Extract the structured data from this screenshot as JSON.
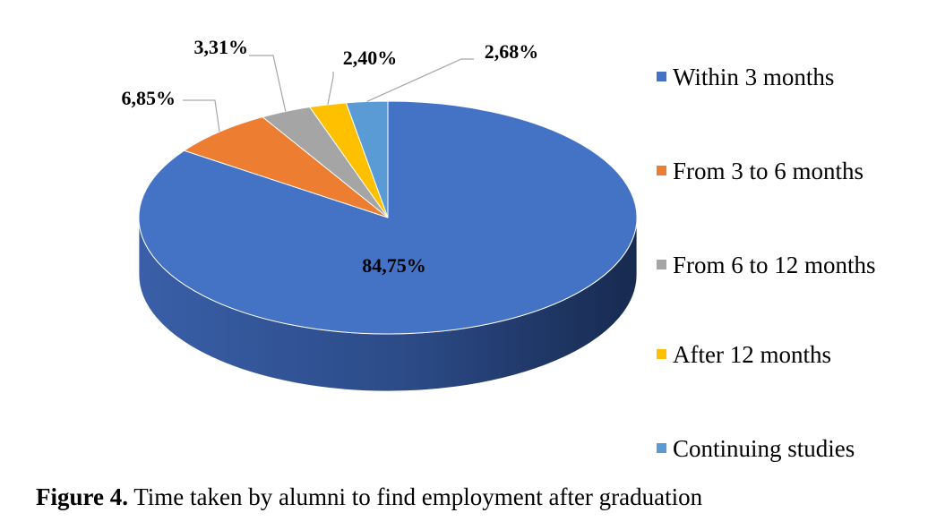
{
  "caption": {
    "label": "Figure 4.",
    "text": " Time taken by alumni to find employment after graduation"
  },
  "chart_data": {
    "type": "pie",
    "three_d": true,
    "legend_position": "right",
    "categories": [
      "Within 3 months",
      "From 3 to 6 months",
      "From 6 to 12 months",
      "After 12 months",
      "Continuing studies"
    ],
    "values": [
      84.75,
      6.85,
      3.31,
      2.4,
      2.68
    ],
    "labels": [
      "84,75%",
      "6,85%",
      "3,31%",
      "2,40%",
      "2,68%"
    ],
    "colors": [
      "#4472C4",
      "#ED7D31",
      "#A5A5A5",
      "#FFC000",
      "#5B9BD5"
    ]
  }
}
